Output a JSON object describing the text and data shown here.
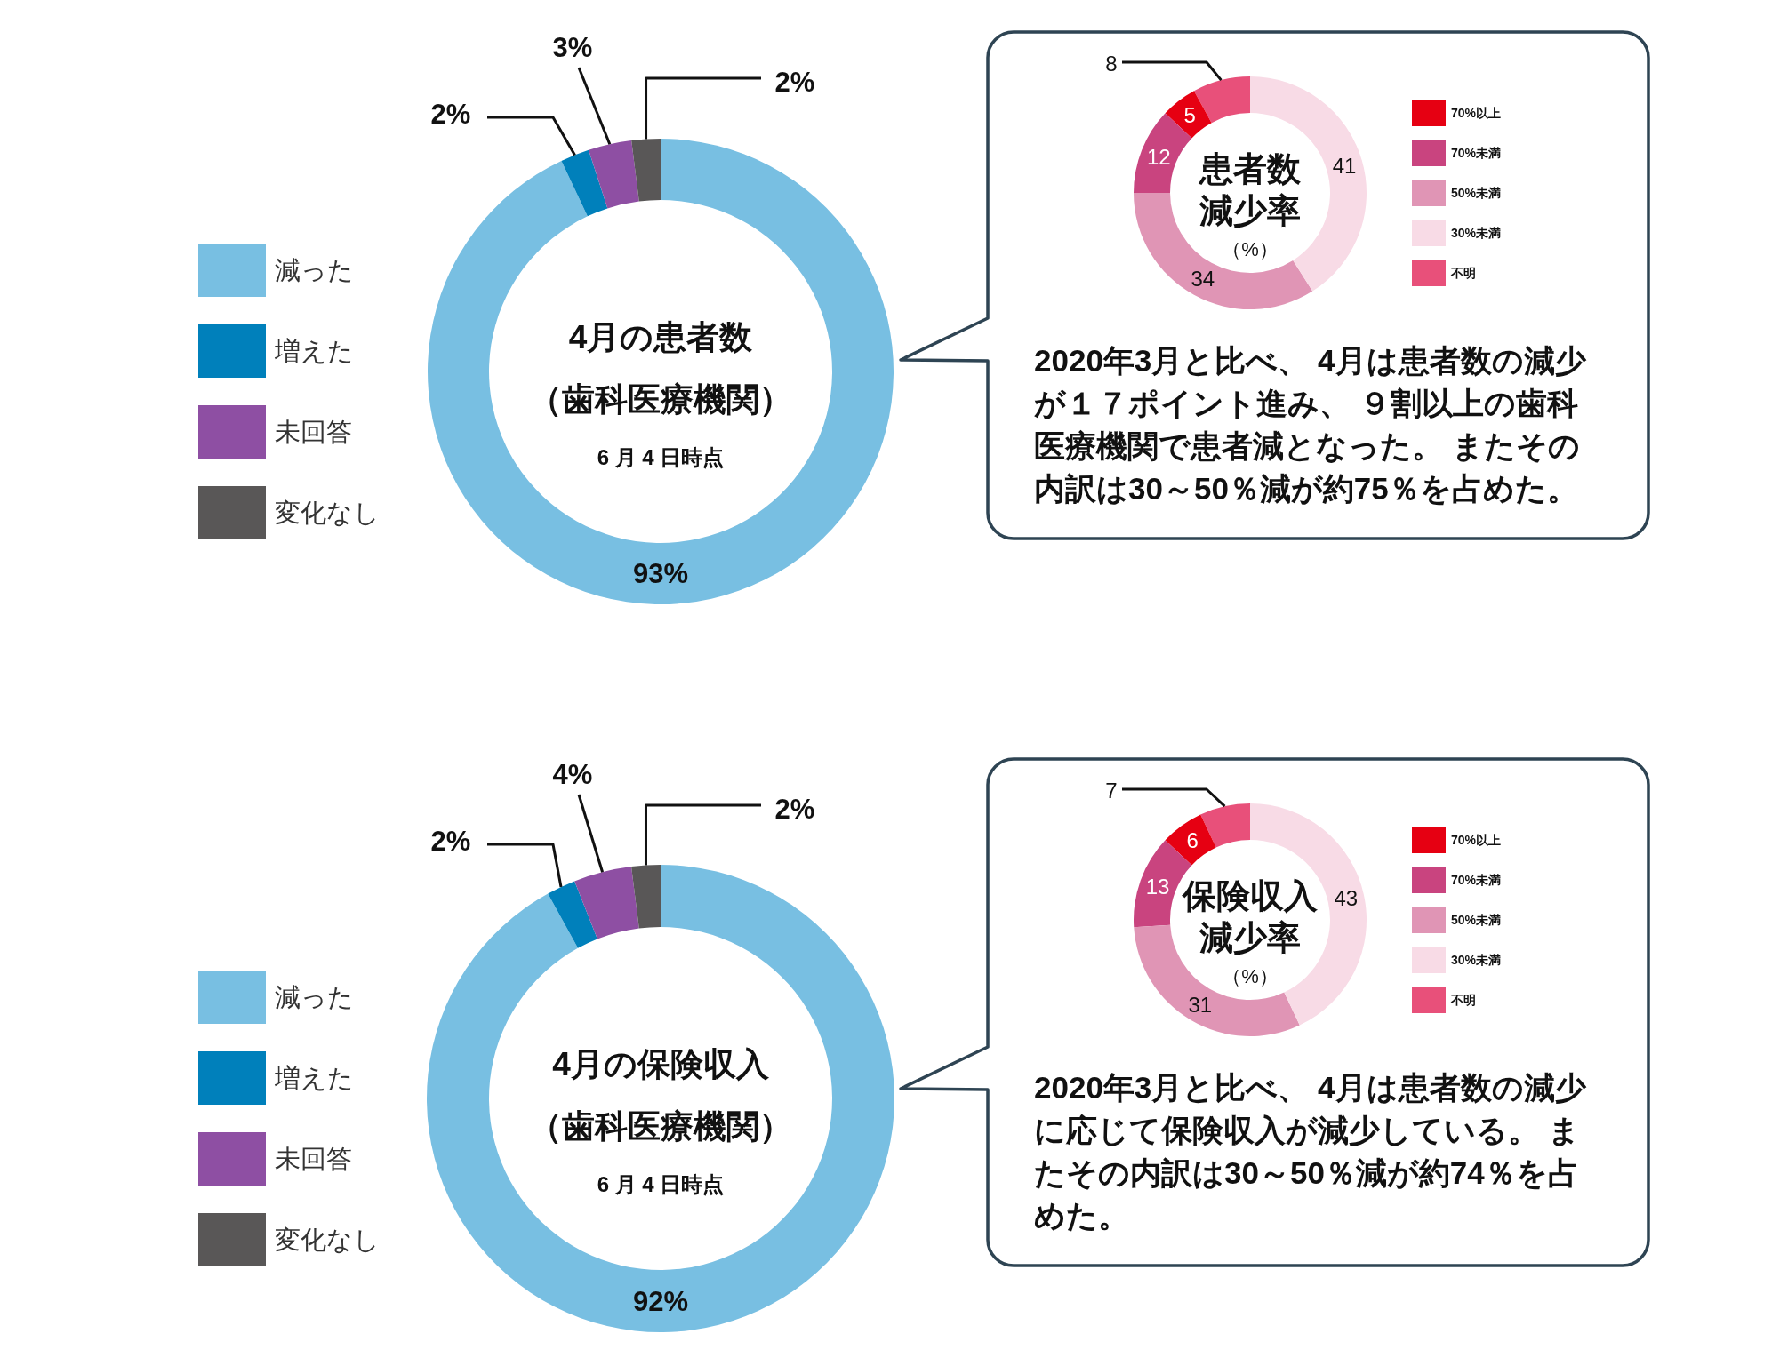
{
  "chart_data": [
    {
      "type": "donut",
      "title": "4月の患者数",
      "subtitle": "（歯科医療機関）",
      "annotations": [
        "6 月 4 日時点"
      ],
      "categories": [
        "減った",
        "増えた",
        "未回答",
        "変化なし"
      ],
      "values": [
        93,
        2,
        3,
        2
      ],
      "colors": [
        "#78bfe2",
        "#0080bb",
        "#8e4fa3",
        "#595757"
      ],
      "value_labels": [
        "93%",
        "2%",
        "3%",
        "2%"
      ],
      "legend": "left"
    },
    {
      "type": "donut",
      "title": "患者数減少率",
      "subtitle": "（%）",
      "annotations": [
        "2020年3月と比べ、 4月は患者数の減少が１７ポイント進み、 ９割以上の歯科医療機関で患者減となった。 またその内訳は30～50％減が約75％を占めた。"
      ],
      "categories": [
        "70%以上",
        "70%未満",
        "50%未満",
        "30%未満",
        "不明"
      ],
      "values": [
        5,
        12,
        34,
        41,
        8
      ],
      "colors": [
        "#e60012",
        "#c9447f",
        "#e095b5",
        "#f8dbe6",
        "#e8507a"
      ],
      "data_labels": true,
      "legend": "right"
    },
    {
      "type": "donut",
      "title": "4月の保険収入",
      "subtitle": "（歯科医療機関）",
      "annotations": [
        "6 月 4 日時点"
      ],
      "categories": [
        "減った",
        "増えた",
        "未回答",
        "変化なし"
      ],
      "values": [
        92,
        2,
        4,
        2
      ],
      "colors": [
        "#78bfe2",
        "#0080bb",
        "#8e4fa3",
        "#595757"
      ],
      "value_labels": [
        "92%",
        "2%",
        "4%",
        "2%"
      ],
      "legend": "left"
    },
    {
      "type": "donut",
      "title": "保険収入減少率",
      "subtitle": "（%）",
      "annotations": [
        "2020年3月と比べ、 4月は患者数の減少に応じて保険収入が減少している。 またその内訳は30～50％減が約74％を占めた。"
      ],
      "categories": [
        "70%以上",
        "70%未満",
        "50%未満",
        "30%未満",
        "不明"
      ],
      "values": [
        6,
        13,
        31,
        43,
        7
      ],
      "colors": [
        "#e60012",
        "#c9447f",
        "#e095b5",
        "#f8dbe6",
        "#e8507a"
      ],
      "data_labels": true,
      "legend": "right"
    }
  ]
}
